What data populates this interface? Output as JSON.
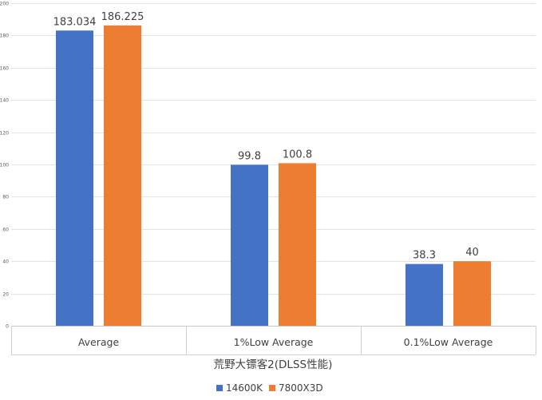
{
  "chart_data": {
    "type": "bar",
    "categories": [
      "Average",
      "1%Low Average",
      "0.1%Low Average"
    ],
    "series": [
      {
        "name": "14600K",
        "values": [
          183.034,
          99.8,
          38.3
        ],
        "color": "#4472C4"
      },
      {
        "name": "7800X3D",
        "values": [
          186.225,
          100.8,
          40
        ],
        "color": "#ED7D31"
      }
    ],
    "data_labels": [
      [
        "183.034",
        "99.8",
        "38.3"
      ],
      [
        "186.225",
        "100.8",
        "40"
      ]
    ],
    "xlabel": "荒野大镖客2(DLSS性能)",
    "ylabel": "",
    "ylim": [
      0,
      200
    ],
    "yticks": [
      0,
      20,
      40,
      60,
      80,
      100,
      120,
      140,
      160,
      180,
      200
    ],
    "grid": true,
    "legend_position": "bottom"
  }
}
